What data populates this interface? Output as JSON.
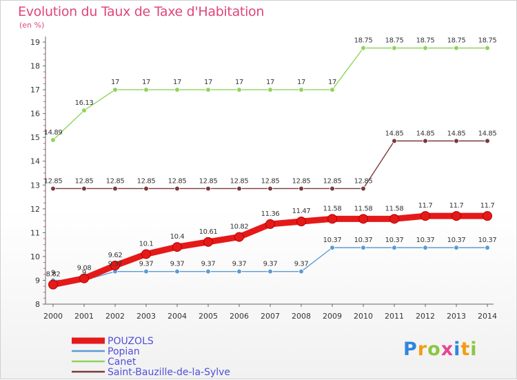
{
  "header": {
    "title": "Evolution du Taux de Taxe d'Habitation",
    "subtitle": "(en %)"
  },
  "chart_data": {
    "type": "line",
    "title": "Evolution du Taux de Taxe d'Habitation",
    "subtitle": "(en %)",
    "xlabel": "",
    "ylabel": "",
    "x": [
      2000,
      2001,
      2002,
      2003,
      2004,
      2005,
      2006,
      2007,
      2008,
      2009,
      2010,
      2011,
      2012,
      2013,
      2014
    ],
    "ylim": [
      8,
      19
    ],
    "yticks": [
      8,
      9,
      10,
      11,
      12,
      13,
      14,
      15,
      16,
      17,
      18,
      19
    ],
    "grid": false,
    "legend_position": "bottom-left",
    "series": [
      {
        "name": "Saint-Bauzille-de-la-Sylve",
        "color": "#7a3a3a",
        "values": [
          12.85,
          12.85,
          12.85,
          12.85,
          12.85,
          12.85,
          12.85,
          12.85,
          12.85,
          12.85,
          12.85,
          14.85,
          14.85,
          14.85,
          14.85
        ],
        "labels": [
          "12.85",
          "12.85",
          "12.85",
          "12.85",
          "12.85",
          "12.85",
          "12.85",
          "12.85",
          "12.85",
          "12.85",
          "12.85",
          "14.85",
          "14.85",
          "14.85",
          "14.85"
        ]
      },
      {
        "name": "Canet",
        "color": "#8ed45a",
        "values": [
          14.89,
          16.13,
          17,
          17,
          17,
          17,
          17,
          17,
          17,
          17,
          18.75,
          18.75,
          18.75,
          18.75,
          18.75
        ],
        "labels": [
          "14.89",
          "16.13",
          "17",
          "17",
          "17",
          "17",
          "17",
          "17",
          "17",
          "17",
          "18.75",
          "18.75",
          "18.75",
          "18.75",
          "18.75"
        ]
      },
      {
        "name": "Popian",
        "color": "#5b9bd5",
        "values": [
          9,
          9,
          9.37,
          9.37,
          9.37,
          9.37,
          9.37,
          9.37,
          9.37,
          10.37,
          10.37,
          10.37,
          10.37,
          10.37,
          10.37
        ],
        "labels": [
          "9",
          "9",
          "9.37",
          "9.37",
          "9.37",
          "9.37",
          "9.37",
          "9.37",
          "9.37",
          "10.37",
          "10.37",
          "10.37",
          "10.37",
          "10.37",
          "10.37"
        ]
      },
      {
        "name": "POUZOLS",
        "color": "#e61919",
        "values": [
          8.82,
          9.08,
          9.62,
          10.1,
          10.4,
          10.61,
          10.82,
          11.36,
          11.47,
          11.58,
          11.58,
          11.58,
          11.7,
          11.7,
          11.7
        ],
        "labels": [
          "8.82",
          "9.08",
          "9.62",
          "10.1",
          "10.4",
          "10.61",
          "10.82",
          "11.36",
          "11.47",
          "11.58",
          "11.58",
          "11.58",
          "11.7",
          "11.7",
          "11.7"
        ]
      }
    ]
  },
  "legend": {
    "items": [
      {
        "name": "POUZOLS",
        "color": "#e61919",
        "text_color": "#4f4fd9"
      },
      {
        "name": "Popian",
        "color": "#5b9bd5",
        "text_color": "#4f4fd9"
      },
      {
        "name": "Canet",
        "color": "#8ed45a",
        "text_color": "#4f4fd9"
      },
      {
        "name": "Saint-Bauzille-de-la-Sylve",
        "color": "#7a3a3a",
        "text_color": "#4f4fd9"
      }
    ]
  },
  "logo": {
    "text": "Proxiti",
    "letters": [
      {
        "ch": "P",
        "color": "#2e86de"
      },
      {
        "ch": "r",
        "color": "#f39c12"
      },
      {
        "ch": "o",
        "color": "#8cc63f"
      },
      {
        "ch": "x",
        "color": "#e84393"
      },
      {
        "ch": "i",
        "color": "#2e86de"
      },
      {
        "ch": "t",
        "color": "#f39c12"
      },
      {
        "ch": "i",
        "color": "#8cc63f"
      }
    ]
  }
}
